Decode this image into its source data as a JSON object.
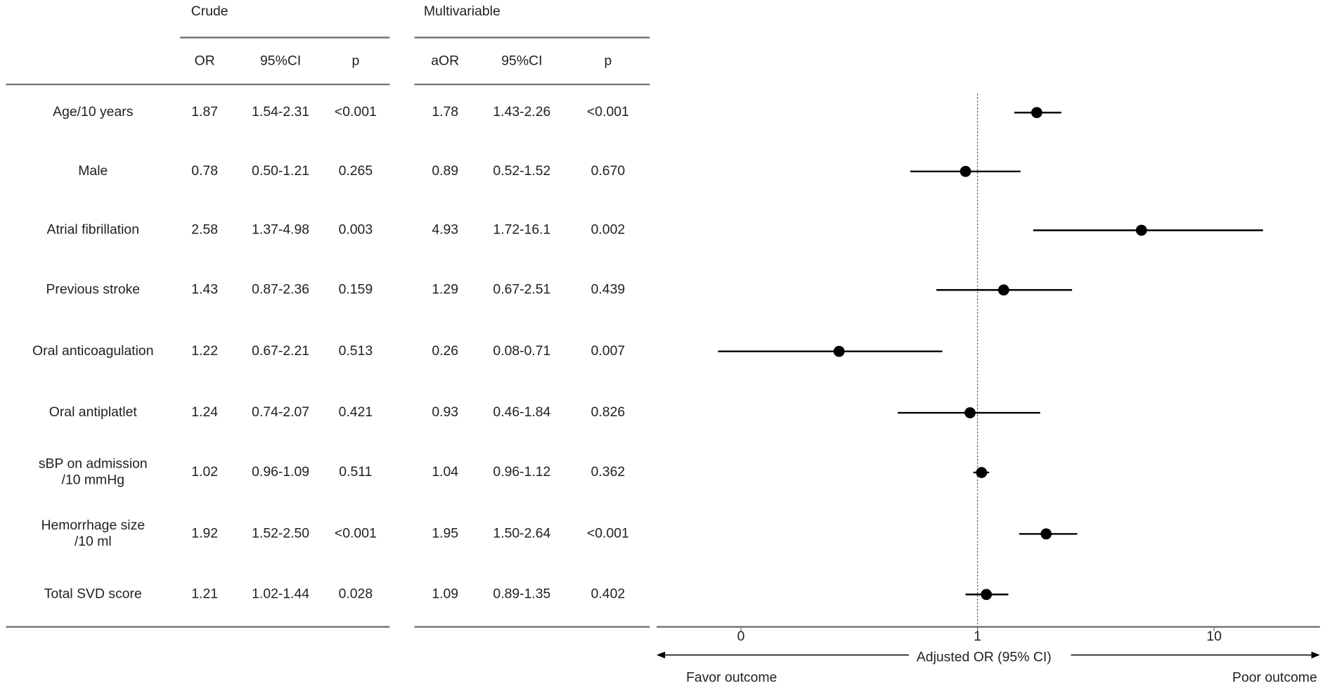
{
  "table": {
    "group_headers": [
      "Crude",
      "Multivariable"
    ],
    "columns": [
      "OR",
      "95%CI",
      "p",
      "aOR",
      "95%CI",
      "p"
    ],
    "rows": [
      {
        "label": "Age/10 years",
        "cells": [
          "1.87",
          "1.54-2.31",
          "<0.001",
          "1.78",
          "1.43-2.26",
          "<0.001"
        ]
      },
      {
        "label": "Male",
        "cells": [
          "0.78",
          "0.50-1.21",
          "0.265",
          "0.89",
          "0.52-1.52",
          "0.670"
        ]
      },
      {
        "label": "Atrial fibrillation",
        "cells": [
          "2.58",
          "1.37-4.98",
          "0.003",
          "4.93",
          "1.72-16.1",
          "0.002"
        ]
      },
      {
        "label": "Previous stroke",
        "cells": [
          "1.43",
          "0.87-2.36",
          "0.159",
          "1.29",
          "0.67-2.51",
          "0.439"
        ]
      },
      {
        "label": "Oral anticoagulation",
        "cells": [
          "1.22",
          "0.67-2.21",
          "0.513",
          "0.26",
          "0.08-0.71",
          "0.007"
        ]
      },
      {
        "label": "Oral antiplatlet",
        "cells": [
          "1.24",
          "0.74-2.07",
          "0.421",
          "0.93",
          "0.46-1.84",
          "0.826"
        ]
      },
      {
        "label": [
          "sBP on admission",
          "/10 mmHg"
        ],
        "cells": [
          "1.02",
          "0.96-1.09",
          "0.511",
          "1.04",
          "0.96-1.12",
          "0.362"
        ]
      },
      {
        "label": [
          "Hemorrhage size",
          "/10 ml"
        ],
        "cells": [
          "1.92",
          "1.52-2.50",
          "<0.001",
          "1.95",
          "1.50-2.64",
          "<0.001"
        ]
      },
      {
        "label": "Total SVD score",
        "cells": [
          "1.21",
          "1.02-1.44",
          "0.028",
          "1.09",
          "0.89-1.35",
          "0.402"
        ]
      }
    ]
  },
  "chart_data": {
    "type": "forest",
    "x_label": "Adjusted OR (95% CI)",
    "left_label": "Favor outcome",
    "right_label": "Poor outcome",
    "log_scale": true,
    "xlim": [
      0.044,
      28
    ],
    "xticks": [
      {
        "value": 0.1,
        "label": "0"
      },
      1,
      10
    ],
    "reference_line": 1,
    "color": "#000000",
    "values": [
      1.78,
      0.89,
      4.93,
      1.29,
      0.26,
      0.93,
      1.04,
      1.95,
      1.09
    ],
    "lower": [
      1.43,
      0.52,
      1.72,
      0.67,
      0.08,
      0.46,
      0.96,
      1.5,
      0.89
    ],
    "upper": [
      2.26,
      1.52,
      16.1,
      2.51,
      0.71,
      1.84,
      1.12,
      2.64,
      1.35
    ]
  }
}
